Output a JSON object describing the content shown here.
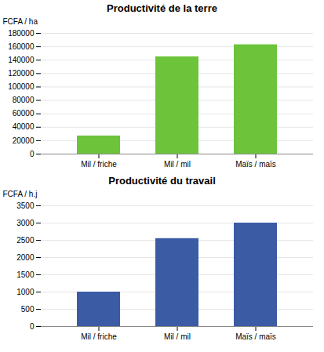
{
  "chart_data": [
    {
      "type": "bar",
      "title": "Productivité de la terre",
      "categories": [
        "Mil / friche",
        "Mil / mil",
        "Maïs / maïs"
      ],
      "values": [
        27000,
        145000,
        163000
      ],
      "color": "#6DC43A",
      "ylabel": "FCFA / ha",
      "ylim": [
        0,
        180000
      ],
      "yticks": [
        0,
        20000,
        40000,
        60000,
        80000,
        100000,
        120000,
        140000,
        160000,
        180000
      ],
      "grid": true
    },
    {
      "type": "bar",
      "title": "Productivité du travail",
      "categories": [
        "Mil / friche",
        "Mil / mil",
        "Maïs / maïs"
      ],
      "values": [
        1000,
        2550,
        3000
      ],
      "color": "#3B5BA5",
      "ylabel": "FCFA / h.j",
      "ylim": [
        0,
        3500
      ],
      "yticks": [
        0,
        500,
        1000,
        1500,
        2000,
        2500,
        3000,
        3500
      ],
      "grid": true
    }
  ]
}
